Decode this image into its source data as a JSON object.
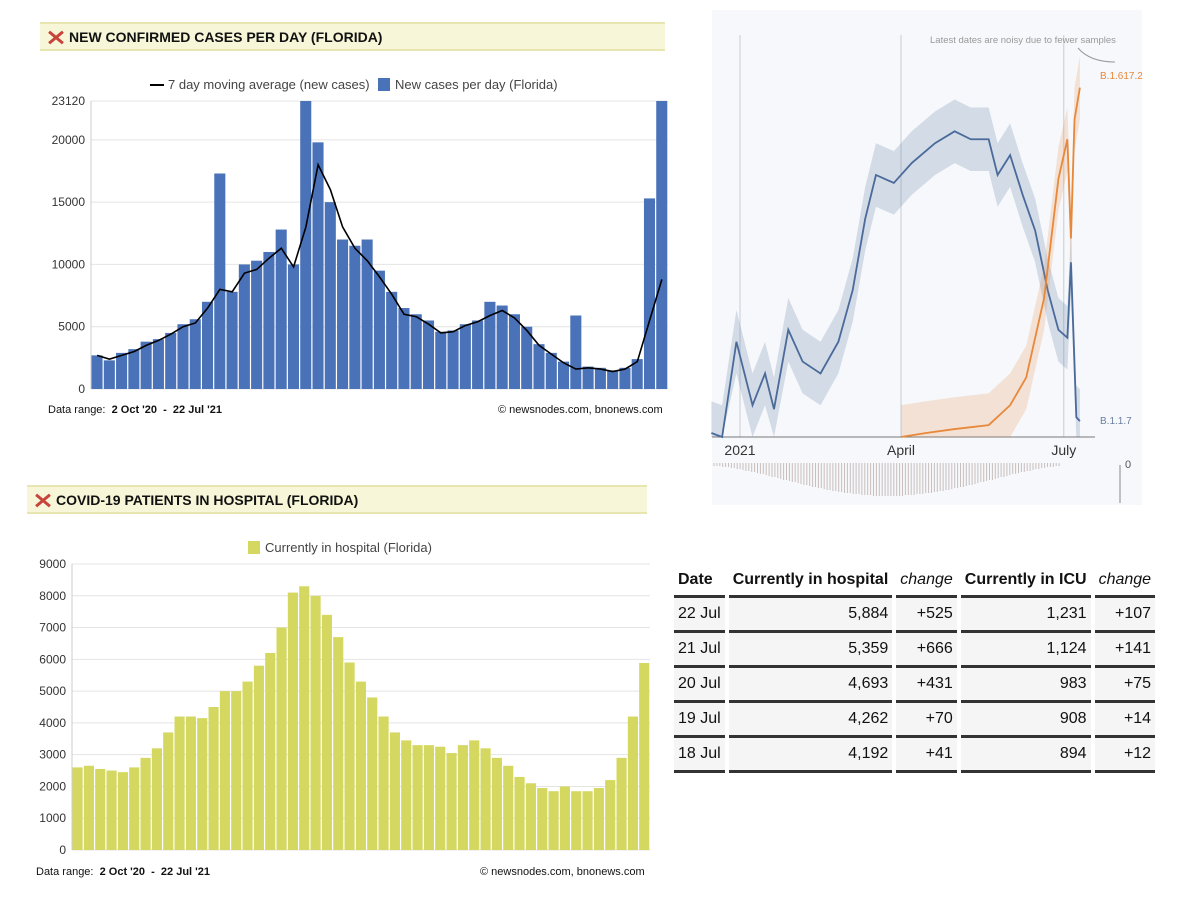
{
  "cases_panel": {
    "title": "NEW CONFIRMED CASES PER DAY (FLORIDA)",
    "legend_line": "7 day moving average (new cases)",
    "legend_bar": "New cases per day (Florida)",
    "data_range_label": "Data range:",
    "data_range": "2 Oct '20  -  22 Jul '21",
    "credit": "© newsnodes.com, bnonews.com"
  },
  "hospital_panel": {
    "title": "COVID-19 PATIENTS IN HOSPITAL (FLORIDA)",
    "legend_bar": "Currently in hospital (Florida)",
    "data_range_label": "Data range:",
    "data_range": "2 Oct '20  -  22 Jul '21",
    "credit": "© newsnodes.com, bnonews.com"
  },
  "variant_panel": {
    "note": "Latest dates are noisy due to fewer samples",
    "label_delta": "B.1.617.2",
    "label_alpha": "B.1.1.7",
    "xticks": [
      "2021",
      "April",
      "July"
    ],
    "lower_axis_label": "0"
  },
  "chart_data": [
    {
      "type": "bar",
      "title": "NEW CONFIRMED CASES PER DAY (FLORIDA)",
      "ylim": [
        0,
        23120
      ],
      "yticks": [
        "0",
        "5000",
        "10000",
        "15000",
        "20000",
        "23120"
      ],
      "grid": true,
      "legend": "top",
      "colors": {
        "bars": "#4a72b8",
        "line": "#000000"
      },
      "series": [
        {
          "name": "New cases per day (Florida)",
          "values": [
            2700,
            2300,
            2900,
            3200,
            3800,
            4000,
            4500,
            5200,
            5600,
            7000,
            17300,
            7800,
            10000,
            10300,
            11000,
            12800,
            10000,
            23120,
            19800,
            15000,
            12000,
            11500,
            12000,
            9500,
            7800,
            6500,
            6000,
            5500,
            4600,
            4700,
            5200,
            5500,
            7000,
            6700,
            6000,
            5000,
            3600,
            2900,
            2200,
            5900,
            1800,
            1700,
            1500,
            1700,
            2400,
            15300,
            23120
          ]
        },
        {
          "name": "7 day moving average (new cases)",
          "values": [
            2700,
            2400,
            2700,
            3000,
            3500,
            3900,
            4400,
            5000,
            5300,
            6500,
            8000,
            7800,
            9300,
            9600,
            10500,
            11300,
            9800,
            13000,
            18000,
            16000,
            13000,
            11300,
            10300,
            9000,
            7600,
            6000,
            5800,
            5200,
            4500,
            4600,
            5100,
            5400,
            5900,
            6300,
            5700,
            4700,
            3500,
            2800,
            2100,
            1600,
            1700,
            1600,
            1400,
            1600,
            2200,
            5500,
            8800
          ]
        }
      ]
    },
    {
      "type": "bar",
      "title": "COVID-19 PATIENTS IN HOSPITAL (FLORIDA)",
      "ylim": [
        0,
        9000
      ],
      "yticks": [
        "0",
        "1000",
        "2000",
        "3000",
        "4000",
        "5000",
        "6000",
        "7000",
        "8000",
        "9000"
      ],
      "grid": true,
      "legend": "top",
      "colors": {
        "bars": "#d4d861"
      },
      "series": [
        {
          "name": "Currently in hospital (Florida)",
          "values": [
            2600,
            2650,
            2550,
            2500,
            2450,
            2600,
            2900,
            3200,
            3700,
            4200,
            4200,
            4150,
            4500,
            5000,
            5000,
            5300,
            5800,
            6200,
            7000,
            8100,
            8300,
            8000,
            7400,
            6700,
            5900,
            5300,
            4800,
            4200,
            3700,
            3450,
            3300,
            3300,
            3250,
            3050,
            3300,
            3450,
            3200,
            2900,
            2650,
            2300,
            2100,
            1950,
            1850,
            2000,
            1850,
            1850,
            1950,
            2200,
            2900,
            4200,
            5884
          ]
        }
      ]
    },
    {
      "type": "line",
      "xticks": [
        "2021",
        "April",
        "July"
      ],
      "grid": false,
      "colors": {
        "B.1.1.7": "#4a6a9a",
        "B.1.617.2": "#e8883a"
      },
      "series": [
        {
          "name": "B.1.1.7",
          "x": [
            "2020-12-16",
            "2020-12-22",
            "2020-12-30",
            "2021-01-08",
            "2021-01-15",
            "2021-01-20",
            "2021-01-28",
            "2021-02-05",
            "2021-02-15",
            "2021-02-25",
            "2021-03-05",
            "2021-03-12",
            "2021-03-18",
            "2021-03-28",
            "2021-04-07",
            "2021-04-20",
            "2021-05-01",
            "2021-05-10",
            "2021-05-20",
            "2021-05-25",
            "2021-06-01",
            "2021-06-08",
            "2021-06-15",
            "2021-06-22",
            "2021-06-28",
            "2021-07-03",
            "2021-07-05",
            "2021-07-08",
            "2021-07-10"
          ],
          "y": [
            1,
            0,
            24,
            8,
            16,
            7,
            27,
            19,
            16,
            24,
            37,
            55,
            66,
            64,
            69,
            74,
            77,
            75,
            75,
            66,
            71,
            61,
            52,
            37,
            27,
            25,
            44,
            5,
            4
          ]
        },
        {
          "name": "B.1.617.2",
          "x": [
            "2021-04-01",
            "2021-04-15",
            "2021-05-01",
            "2021-05-20",
            "2021-06-01",
            "2021-06-10",
            "2021-06-20",
            "2021-06-28",
            "2021-07-03",
            "2021-07-05",
            "2021-07-07",
            "2021-07-10"
          ],
          "y": [
            0,
            1,
            2,
            3,
            8,
            15,
            35,
            65,
            75,
            50,
            80,
            88
          ]
        }
      ]
    }
  ],
  "table": {
    "headers": [
      "Date",
      "Currently in hospital",
      "change",
      "Currently in ICU",
      "change"
    ],
    "rows": [
      [
        "22 Jul",
        "5,884",
        "+525",
        "1,231",
        "+107"
      ],
      [
        "21 Jul",
        "5,359",
        "+666",
        "1,124",
        "+141"
      ],
      [
        "20 Jul",
        "4,693",
        "+431",
        "983",
        "+75"
      ],
      [
        "19 Jul",
        "4,262",
        "+70",
        "908",
        "+14"
      ],
      [
        "18 Jul",
        "4,192",
        "+41",
        "894",
        "+12"
      ]
    ]
  }
}
